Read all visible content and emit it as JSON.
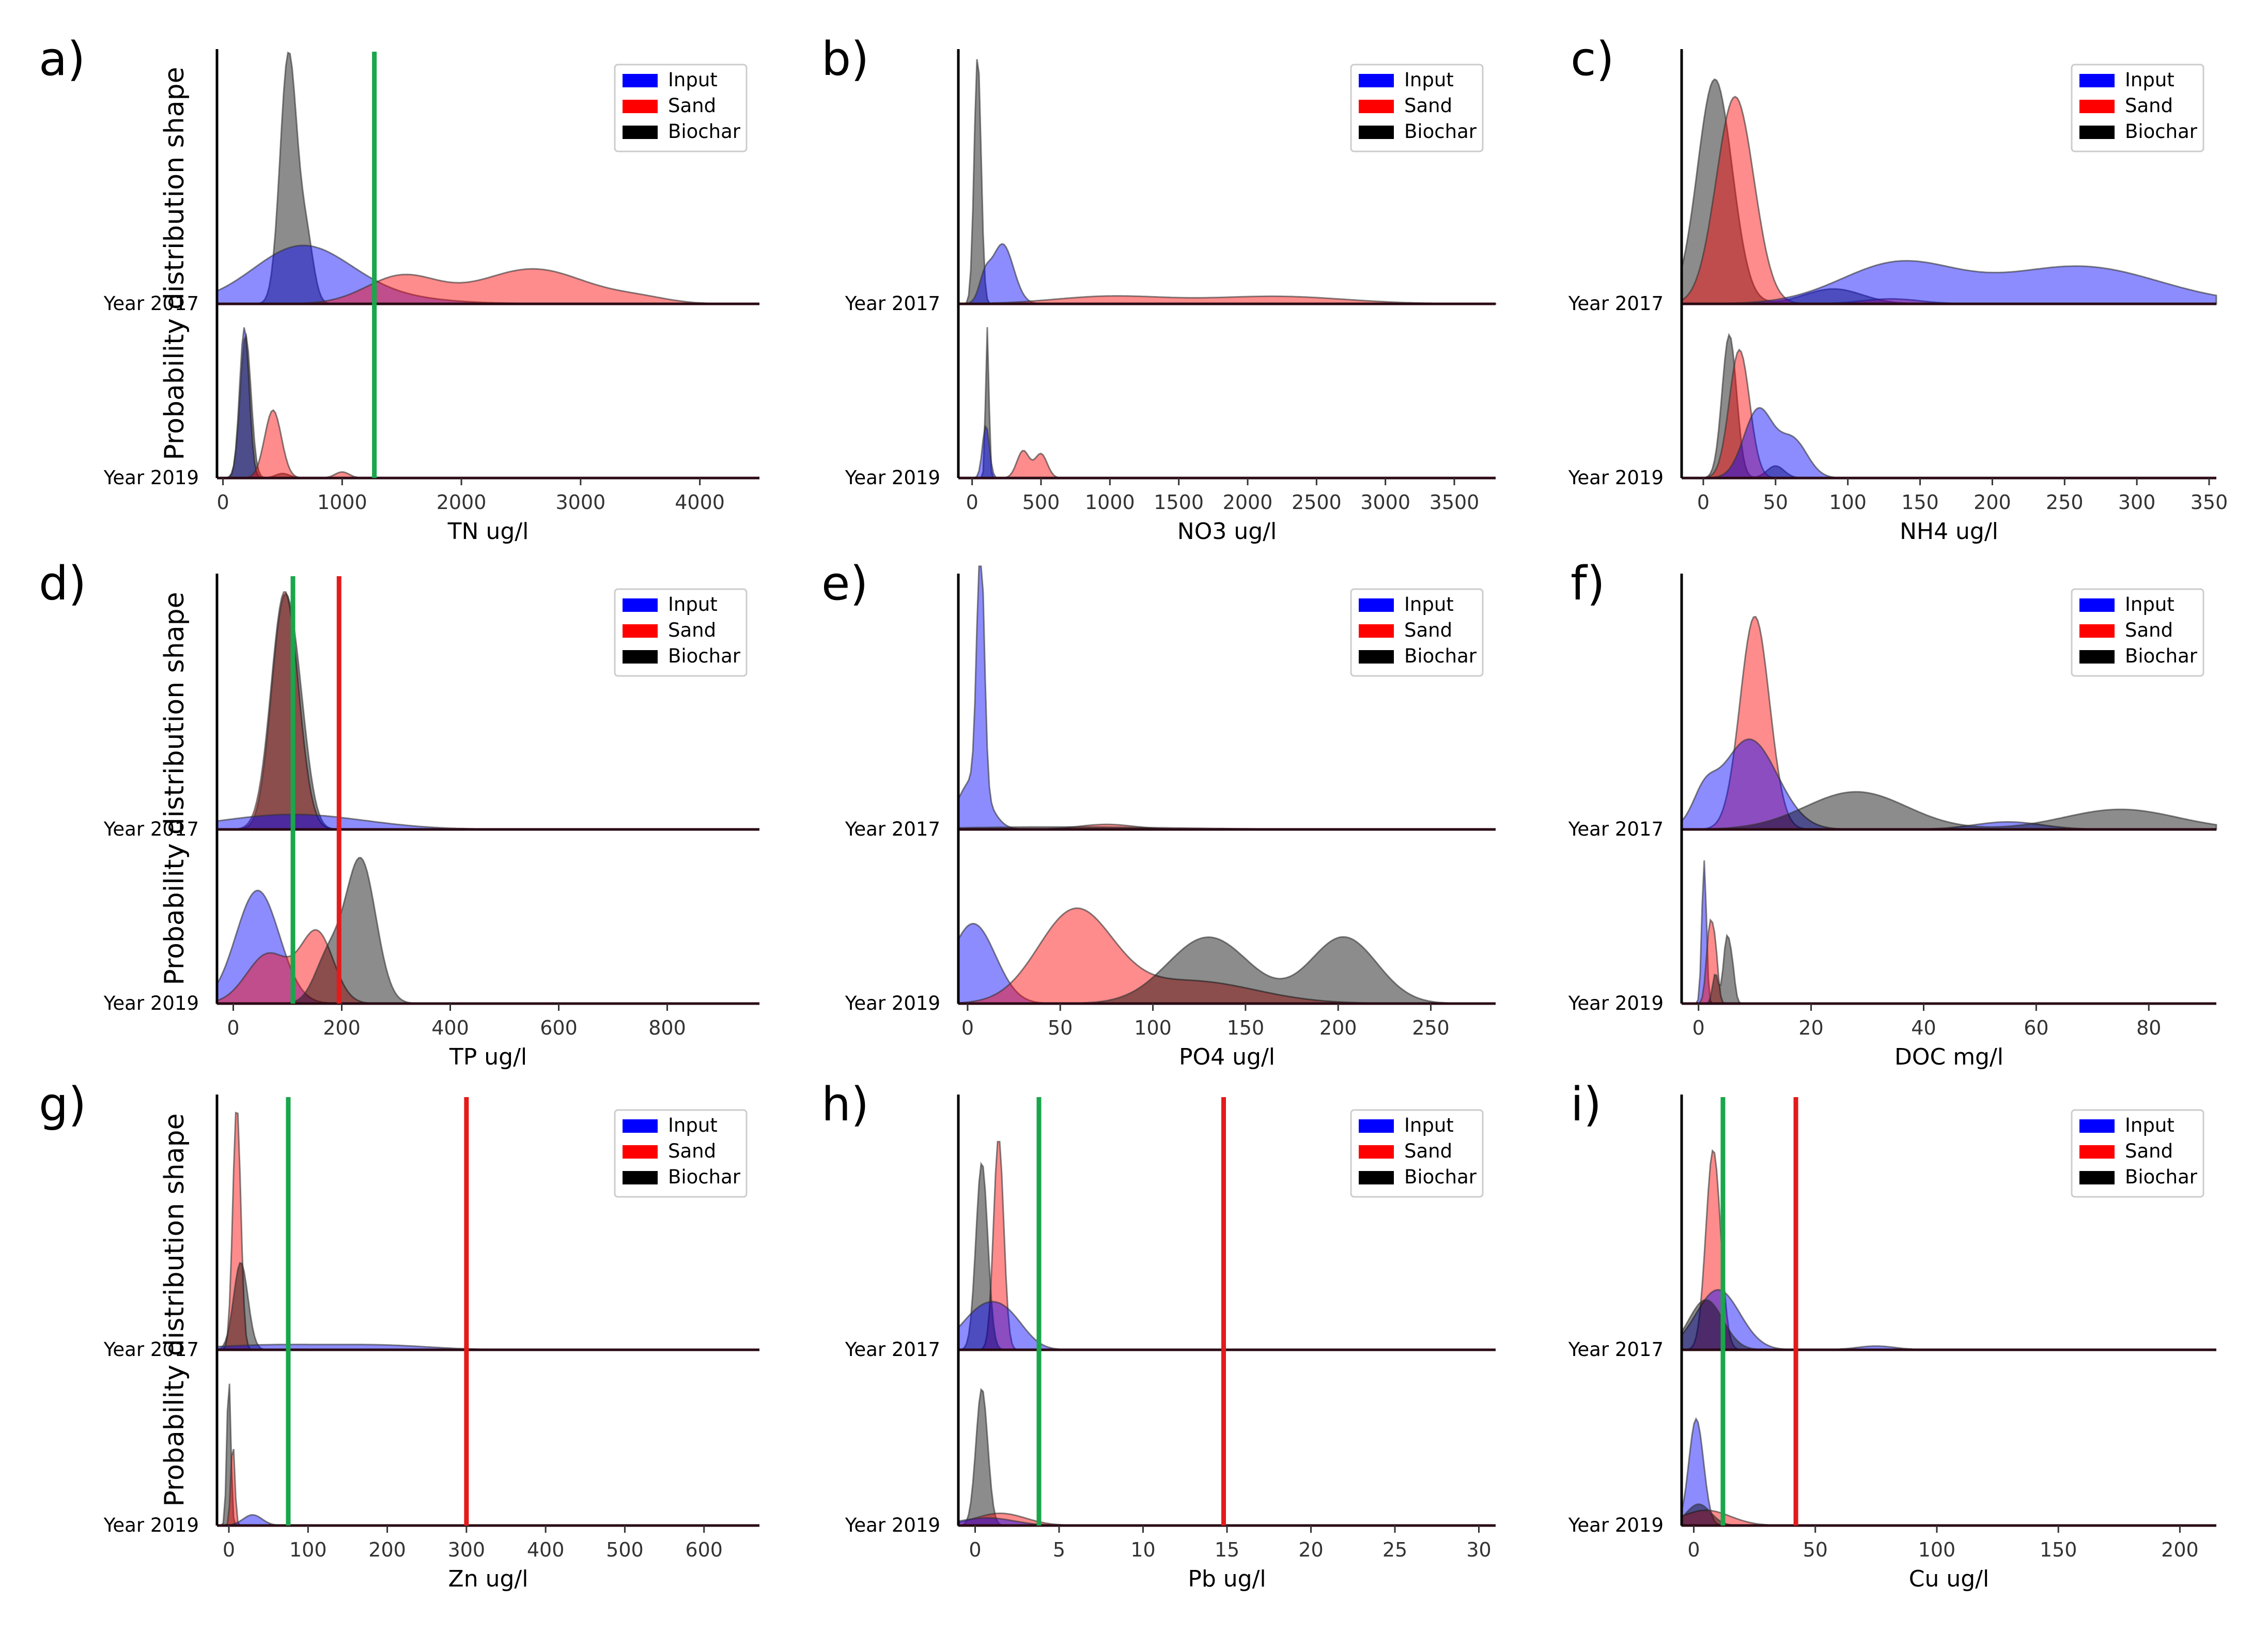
{
  "figure": {
    "ylabel": "Probability distribution shape",
    "rows": [
      "Year 2017",
      "Year 2019"
    ],
    "legend": [
      {
        "label": "Input",
        "color": "#0000ff"
      },
      {
        "label": "Sand",
        "color": "#ff0000"
      },
      {
        "label": "Biochar",
        "color": "#000000"
      }
    ],
    "guide_colors": {
      "green": "#1aa64b",
      "red": "#e31b1b"
    }
  },
  "chart_data": [
    {
      "id": "a",
      "letter": "a)",
      "type": "area",
      "title": "",
      "xlabel": "TN ug/l",
      "ylabel": "Probability distribution shape",
      "xlim": [
        -50,
        4500
      ],
      "ticks": [
        0,
        1000,
        2000,
        3000,
        4000
      ],
      "vlines": [
        {
          "x": 1270,
          "color": "green"
        }
      ],
      "series": [
        {
          "name": "Biochar",
          "row": "Year 2017",
          "peaks": [
            [
              550,
              1.0,
              70
            ],
            [
              700,
              0.25,
              60
            ]
          ]
        },
        {
          "name": "Input",
          "row": "Year 2017",
          "peaks": [
            [
              650,
              0.2,
              400
            ],
            [
              1000,
              0.04,
              600
            ]
          ]
        },
        {
          "name": "Sand",
          "row": "Year 2017",
          "peaks": [
            [
              1500,
              0.11,
              300
            ],
            [
              2600,
              0.14,
              450
            ],
            [
              3500,
              0.02,
              250
            ]
          ]
        },
        {
          "name": "Input",
          "row": "Year 2019",
          "peaks": [
            [
              180,
              1.0,
              40
            ]
          ]
        },
        {
          "name": "Biochar",
          "row": "Year 2019",
          "peaks": [
            [
              190,
              0.95,
              45
            ],
            [
              500,
              0.03,
              60
            ]
          ]
        },
        {
          "name": "Sand",
          "row": "Year 2019",
          "peaks": [
            [
              420,
              0.45,
              70
            ],
            [
              1000,
              0.04,
              60
            ]
          ]
        }
      ]
    },
    {
      "id": "b",
      "letter": "b)",
      "type": "area",
      "title": "",
      "xlabel": "NO3 ug/l",
      "ylabel": "",
      "xlim": [
        -100,
        3800
      ],
      "ticks": [
        0,
        500,
        1000,
        1500,
        2000,
        2500,
        3000,
        3500
      ],
      "vlines": [],
      "series": [
        {
          "name": "Biochar",
          "row": "Year 2017",
          "peaks": [
            [
              40,
              1.0,
              25
            ]
          ]
        },
        {
          "name": "Input",
          "row": "Year 2017",
          "peaks": [
            [
              220,
              0.24,
              80
            ],
            [
              90,
              0.08,
              40
            ]
          ]
        },
        {
          "name": "Sand",
          "row": "Year 2017",
          "peaks": [
            [
              1000,
              0.03,
              400
            ],
            [
              2200,
              0.03,
              500
            ]
          ]
        },
        {
          "name": "Biochar",
          "row": "Year 2019",
          "peaks": [
            [
              110,
              1.0,
              12
            ]
          ]
        },
        {
          "name": "Input",
          "row": "Year 2019",
          "peaks": [
            [
              100,
              0.35,
              25
            ]
          ]
        },
        {
          "name": "Sand",
          "row": "Year 2019",
          "peaks": [
            [
              370,
              0.18,
              45
            ],
            [
              500,
              0.16,
              45
            ]
          ]
        }
      ]
    },
    {
      "id": "c",
      "letter": "c)",
      "type": "area",
      "title": "",
      "xlabel": "NH4 ug/l",
      "ylabel": "",
      "xlim": [
        -15,
        355
      ],
      "ticks": [
        0,
        50,
        100,
        150,
        200,
        250,
        300,
        350
      ],
      "vlines": [],
      "series": [
        {
          "name": "Biochar",
          "row": "Year 2017",
          "peaks": [
            [
              8,
              0.9,
              12
            ],
            [
              90,
              0.06,
              20
            ]
          ]
        },
        {
          "name": "Sand",
          "row": "Year 2017",
          "peaks": [
            [
              22,
              0.83,
              13
            ],
            [
              130,
              0.02,
              20
            ]
          ]
        },
        {
          "name": "Input",
          "row": "Year 2017",
          "peaks": [
            [
              135,
              0.16,
              40
            ],
            [
              260,
              0.15,
              55
            ]
          ]
        },
        {
          "name": "Biochar",
          "row": "Year 2019",
          "peaks": [
            [
              18,
              0.95,
              5
            ],
            [
              50,
              0.08,
              6
            ]
          ]
        },
        {
          "name": "Sand",
          "row": "Year 2019",
          "peaks": [
            [
              25,
              0.85,
              7
            ]
          ]
        },
        {
          "name": "Input",
          "row": "Year 2019",
          "peaks": [
            [
              38,
              0.45,
              10
            ],
            [
              62,
              0.25,
              10
            ]
          ]
        }
      ]
    },
    {
      "id": "d",
      "letter": "d)",
      "type": "area",
      "title": "",
      "xlabel": "TP ug/l",
      "ylabel": "Probability distribution shape",
      "xlim": [
        -30,
        970
      ],
      "ticks": [
        0,
        200,
        400,
        600,
        800
      ],
      "vlines": [
        {
          "x": 110,
          "color": "green"
        },
        {
          "x": 195,
          "color": "red"
        }
      ],
      "series": [
        {
          "name": "Sand",
          "row": "Year 2017",
          "peaks": [
            [
              95,
              0.95,
              25
            ]
          ]
        },
        {
          "name": "Biochar",
          "row": "Year 2017",
          "peaks": [
            [
              90,
              0.8,
              22
            ],
            [
              120,
              0.35,
              20
            ]
          ]
        },
        {
          "name": "Input",
          "row": "Year 2017",
          "peaks": [
            [
              110,
              0.06,
              130
            ]
          ]
        },
        {
          "name": "Input",
          "row": "Year 2019",
          "peaks": [
            [
              45,
              0.75,
              40
            ]
          ]
        },
        {
          "name": "Sand",
          "row": "Year 2019",
          "peaks": [
            [
              65,
              0.33,
              40
            ],
            [
              155,
              0.46,
              30
            ]
          ]
        },
        {
          "name": "Biochar",
          "row": "Year 2019",
          "peaks": [
            [
              175,
              0.3,
              25
            ],
            [
              235,
              0.95,
              28
            ]
          ]
        }
      ]
    },
    {
      "id": "e",
      "letter": "e)",
      "type": "area",
      "title": "",
      "xlabel": "PO4 ug/l",
      "ylabel": "",
      "xlim": [
        -5,
        285
      ],
      "ticks": [
        0,
        50,
        100,
        150,
        200,
        250
      ],
      "vlines": [],
      "series": [
        {
          "name": "Input",
          "row": "Year 2017",
          "peaks": [
            [
              7,
              1.0,
              2
            ],
            [
              3,
              0.2,
              8
            ]
          ]
        },
        {
          "name": "Sand",
          "row": "Year 2017",
          "peaks": [
            [
              75,
              0.02,
              15
            ]
          ]
        },
        {
          "name": "Biochar",
          "row": "Year 2017",
          "peaks": [
            [
              50,
              0.01,
              60
            ]
          ]
        },
        {
          "name": "Input",
          "row": "Year 2019",
          "peaks": [
            [
              3,
              0.53,
              12
            ]
          ]
        },
        {
          "name": "Sand",
          "row": "Year 2019",
          "peaks": [
            [
              58,
              0.6,
              20
            ],
            [
              120,
              0.15,
              35
            ]
          ]
        },
        {
          "name": "Biochar",
          "row": "Year 2019",
          "peaks": [
            [
              130,
              0.44,
              22
            ],
            [
              203,
              0.44,
              18
            ]
          ]
        }
      ]
    },
    {
      "id": "f",
      "letter": "f)",
      "type": "area",
      "title": "",
      "xlabel": "DOC mg/l",
      "ylabel": "",
      "xlim": [
        -3,
        92
      ],
      "ticks": [
        0,
        20,
        40,
        60,
        80
      ],
      "vlines": [],
      "series": [
        {
          "name": "Sand",
          "row": "Year 2017",
          "peaks": [
            [
              10,
              0.85,
              2.6
            ]
          ]
        },
        {
          "name": "Input",
          "row": "Year 2017",
          "peaks": [
            [
              9,
              0.36,
              5
            ],
            [
              1,
              0.1,
              2
            ],
            [
              55,
              0.03,
              6
            ]
          ]
        },
        {
          "name": "Biochar",
          "row": "Year 2017",
          "peaks": [
            [
              28,
              0.15,
              9
            ],
            [
              75,
              0.08,
              10
            ]
          ]
        },
        {
          "name": "Input",
          "row": "Year 2019",
          "peaks": [
            [
              1,
              0.95,
              0.4
            ]
          ]
        },
        {
          "name": "Sand",
          "row": "Year 2019",
          "peaks": [
            [
              2,
              0.5,
              0.6
            ],
            [
              3,
              0.3,
              0.5
            ]
          ]
        },
        {
          "name": "Biochar",
          "row": "Year 2019",
          "peaks": [
            [
              5,
              0.42,
              0.6
            ],
            [
              6,
              0.2,
              0.5
            ],
            [
              3,
              0.2,
              0.5
            ]
          ]
        }
      ]
    },
    {
      "id": "g",
      "letter": "g)",
      "type": "area",
      "title": "",
      "xlabel": "Zn ug/l",
      "ylabel": "Probability distribution shape",
      "xlim": [
        -15,
        670
      ],
      "ticks": [
        0,
        100,
        200,
        300,
        400,
        500,
        600
      ],
      "vlines": [
        {
          "x": 75,
          "color": "green"
        },
        {
          "x": 300,
          "color": "red"
        }
      ],
      "series": [
        {
          "name": "Sand",
          "row": "Year 2017",
          "peaks": [
            [
              10,
              0.98,
              5
            ]
          ]
        },
        {
          "name": "Biochar",
          "row": "Year 2017",
          "peaks": [
            [
              15,
              0.35,
              9
            ]
          ]
        },
        {
          "name": "Input",
          "row": "Year 2017",
          "peaks": [
            [
              60,
              0.02,
              80
            ],
            [
              200,
              0.015,
              60
            ]
          ]
        },
        {
          "name": "Biochar",
          "row": "Year 2019",
          "peaks": [
            [
              0,
              0.98,
              2.5
            ]
          ]
        },
        {
          "name": "Sand",
          "row": "Year 2019",
          "peaks": [
            [
              5,
              0.55,
              2.5
            ]
          ]
        },
        {
          "name": "Input",
          "row": "Year 2019",
          "peaks": [
            [
              30,
              0.07,
              12
            ]
          ]
        }
      ]
    },
    {
      "id": "h",
      "letter": "h)",
      "type": "area",
      "title": "",
      "xlabel": "Pb ug/l",
      "ylabel": "",
      "xlim": [
        -1,
        31
      ],
      "ticks": [
        0,
        5,
        10,
        15,
        20,
        25,
        30
      ],
      "vlines": [
        {
          "x": 3.8,
          "color": "green"
        },
        {
          "x": 14.8,
          "color": "red"
        }
      ],
      "series": [
        {
          "name": "Sand",
          "row": "Year 2017",
          "peaks": [
            [
              1.4,
              0.85,
              0.3
            ]
          ]
        },
        {
          "name": "Biochar",
          "row": "Year 2017",
          "peaks": [
            [
              0.4,
              0.75,
              0.35
            ]
          ]
        },
        {
          "name": "Input",
          "row": "Year 2017",
          "peaks": [
            [
              0.6,
              0.17,
              1.4
            ],
            [
              2.2,
              0.06,
              1
            ]
          ]
        },
        {
          "name": "Biochar",
          "row": "Year 2019",
          "peaks": [
            [
              0.4,
              0.9,
              0.35
            ]
          ]
        },
        {
          "name": "Sand",
          "row": "Year 2019",
          "peaks": [
            [
              1.5,
              0.08,
              1.5
            ]
          ]
        },
        {
          "name": "Input",
          "row": "Year 2019",
          "peaks": [
            [
              0.7,
              0.05,
              1.6
            ]
          ]
        }
      ]
    },
    {
      "id": "i",
      "letter": "i)",
      "type": "area",
      "title": "",
      "xlabel": "Cu ug/l",
      "ylabel": "",
      "xlim": [
        -5,
        215
      ],
      "ticks": [
        0,
        50,
        100,
        150,
        200
      ],
      "vlines": [
        {
          "x": 12,
          "color": "green"
        },
        {
          "x": 42,
          "color": "red"
        }
      ],
      "series": [
        {
          "name": "Sand",
          "row": "Year 2017",
          "peaks": [
            [
              8,
              0.8,
              3
            ]
          ]
        },
        {
          "name": "Input",
          "row": "Year 2017",
          "peaks": [
            [
              10,
              0.24,
              9
            ],
            [
              75,
              0.015,
              8
            ]
          ]
        },
        {
          "name": "Biochar",
          "row": "Year 2017",
          "peaks": [
            [
              5,
              0.2,
              7
            ]
          ]
        },
        {
          "name": "Input",
          "row": "Year 2019",
          "peaks": [
            [
              1,
              0.7,
              3
            ]
          ]
        },
        {
          "name": "Sand",
          "row": "Year 2019",
          "peaks": [
            [
              5,
              0.1,
              10
            ]
          ]
        },
        {
          "name": "Biochar",
          "row": "Year 2019",
          "peaks": [
            [
              2,
              0.14,
              5
            ]
          ]
        }
      ]
    }
  ]
}
